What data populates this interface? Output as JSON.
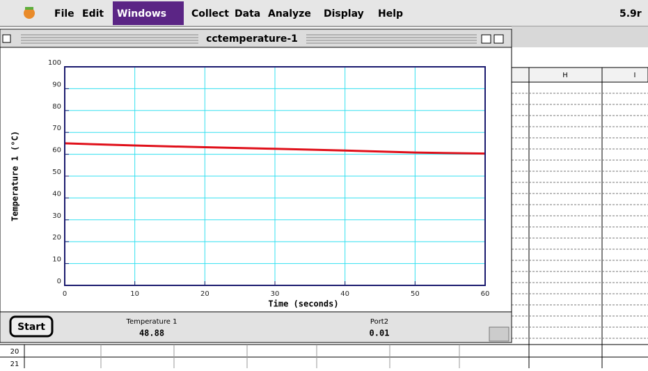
{
  "menu": {
    "items": [
      "File",
      "Edit",
      "Windows",
      "Collect",
      "Data",
      "Analyze",
      "Display",
      "Help"
    ],
    "version": "5.9r"
  },
  "window": {
    "title": "cctemperature-1",
    "button": "Start"
  },
  "readouts": [
    {
      "label": "Temperature 1",
      "value": "48.88"
    },
    {
      "label": "Port2",
      "value": "0.01"
    }
  ],
  "spreadsheet": {
    "columns": [
      "H",
      "I"
    ],
    "rows": [
      "20",
      "21"
    ]
  },
  "chart_data": {
    "type": "line",
    "x_label": "Time (seconds)",
    "y_label": "Temperature 1 (°C)",
    "x": [
      0,
      10,
      20,
      30,
      40,
      50,
      60
    ],
    "series": [
      {
        "name": "Temperature 1",
        "color": "#e0101a",
        "values": [
          65,
          64,
          63.2,
          62.5,
          61.7,
          60.8,
          60.3
        ]
      }
    ],
    "xlim": [
      0,
      60
    ],
    "xticks": [
      0,
      10,
      20,
      30,
      40,
      50,
      60
    ],
    "ylim": [
      0,
      100
    ],
    "yticks": [
      0,
      10,
      20,
      30,
      40,
      50,
      60,
      70,
      80,
      90,
      100
    ],
    "grid": true
  }
}
